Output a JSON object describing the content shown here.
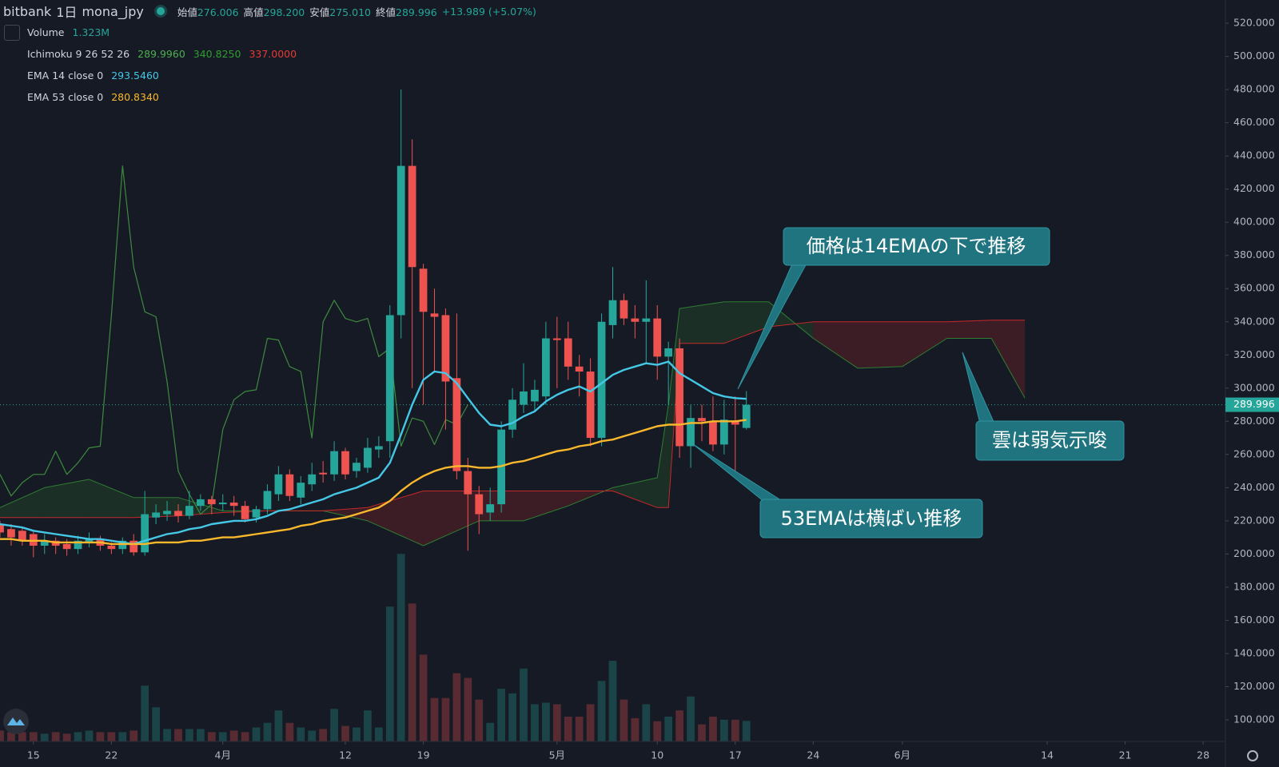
{
  "chart_data": {
    "type": "candlestick",
    "symbol": "bitbank",
    "interval": "1日",
    "pair": "mona_jpy",
    "ohlc_legend": [
      {
        "label": "始値",
        "value": "276.006"
      },
      {
        "label": "高値",
        "value": "298.200"
      },
      {
        "label": "安値",
        "value": "275.010"
      },
      {
        "label": "終値",
        "value": "289.996"
      }
    ],
    "change": "+13.989 (+5.07%)",
    "volume_legend": {
      "name": "Volume",
      "value": "1.323M"
    },
    "ichimoku_legend": {
      "name": "Ichimoku 9 26 52 26",
      "values": [
        "289.9960",
        "340.8250",
        "337.0000"
      ],
      "colors": [
        "#4caf50",
        "#2e9e2e",
        "#e53935"
      ]
    },
    "x": [
      "03-12",
      "03-13",
      "03-14",
      "03-15",
      "03-16",
      "03-17",
      "03-18",
      "03-19",
      "03-20",
      "03-21",
      "03-22",
      "03-23",
      "03-24",
      "03-25",
      "03-26",
      "03-27",
      "03-28",
      "03-29",
      "03-30",
      "03-31",
      "04-01",
      "04-02",
      "04-03",
      "04-04",
      "04-05",
      "04-06",
      "04-07",
      "04-08",
      "04-09",
      "04-10",
      "04-11",
      "04-12",
      "04-13",
      "04-14",
      "04-15",
      "04-16",
      "04-17",
      "04-18",
      "04-19",
      "04-20",
      "04-21",
      "04-22",
      "04-23",
      "04-24",
      "04-25",
      "04-26",
      "04-27",
      "04-28",
      "04-29",
      "04-30",
      "05-01",
      "05-02",
      "05-03",
      "05-04",
      "05-05",
      "05-06",
      "05-07",
      "05-08",
      "05-09",
      "05-10",
      "05-11",
      "05-12",
      "05-13",
      "05-14",
      "05-15",
      "05-16",
      "05-17",
      "05-18"
    ],
    "open": [
      218,
      215,
      214,
      212,
      205,
      208,
      206,
      203,
      207,
      209,
      205,
      203,
      208,
      201,
      222,
      224,
      226,
      223,
      229,
      233,
      230,
      231,
      229,
      222,
      227,
      236,
      248,
      234,
      242,
      249,
      248,
      262,
      250,
      252,
      263,
      268,
      344,
      434,
      372,
      345,
      344,
      306,
      250,
      236,
      225,
      230,
      275,
      290,
      292,
      295,
      330,
      330,
      313,
      310,
      270,
      338,
      353,
      342,
      340,
      342,
      319,
      324,
      265,
      282,
      280,
      266,
      280,
      276.006
    ],
    "high": [
      220,
      218,
      216,
      214,
      212,
      210,
      209,
      211,
      213,
      211,
      207,
      210,
      212,
      238,
      230,
      232,
      230,
      238,
      236,
      235,
      236,
      235,
      232,
      229,
      242,
      253,
      251,
      247,
      255,
      256,
      268,
      264,
      258,
      270,
      271,
      350,
      480,
      450,
      375,
      360,
      348,
      345,
      258,
      241,
      240,
      280,
      300,
      315,
      305,
      340,
      343,
      340,
      320,
      318,
      345,
      373,
      357,
      350,
      365,
      350,
      328,
      330,
      290,
      290,
      295,
      293,
      295,
      298.2
    ],
    "low": [
      210,
      205,
      205,
      198,
      200,
      200,
      199,
      200,
      204,
      202,
      200,
      200,
      199,
      199,
      218,
      220,
      219,
      221,
      226,
      224,
      226,
      223,
      219,
      219,
      224,
      232,
      232,
      230,
      238,
      243,
      244,
      245,
      246,
      249,
      258,
      258,
      330,
      300,
      290,
      310,
      275,
      245,
      202,
      212,
      220,
      225,
      270,
      285,
      286,
      290,
      300,
      305,
      295,
      265,
      265,
      330,
      338,
      330,
      315,
      305,
      290,
      258,
      252,
      268,
      262,
      260,
      250,
      275.01
    ],
    "close": [
      213,
      210,
      208,
      205,
      208,
      205,
      203,
      208,
      209,
      205,
      203,
      208,
      201,
      224,
      225,
      226,
      223,
      229,
      233,
      230,
      231,
      229,
      221,
      227,
      238,
      248,
      235,
      243,
      248,
      248,
      262,
      248,
      255,
      264,
      265,
      344,
      434,
      373,
      346,
      343,
      304,
      250,
      236,
      224,
      230,
      275,
      293,
      298,
      299,
      330,
      329,
      313,
      310,
      270,
      340,
      353,
      342,
      340,
      342,
      319,
      324,
      265,
      282,
      280,
      266,
      281,
      278,
      289.996
    ],
    "volume": [
      0.7,
      0.6,
      0.6,
      0.6,
      0.5,
      0.6,
      0.5,
      0.6,
      0.7,
      0.6,
      0.6,
      0.6,
      0.7,
      3.6,
      2.2,
      0.8,
      0.8,
      0.8,
      0.8,
      0.6,
      0.6,
      0.7,
      0.6,
      0.9,
      1.2,
      2.0,
      1.2,
      0.9,
      0.7,
      0.8,
      2.1,
      1.0,
      0.9,
      2.0,
      0.9,
      8.7,
      12.1,
      8.9,
      5.6,
      2.8,
      2.8,
      4.4,
      4.1,
      2.7,
      1.2,
      3.4,
      3.1,
      4.7,
      2.4,
      2.5,
      2.4,
      1.6,
      1.6,
      2.4,
      3.9,
      5.2,
      2.7,
      1.5,
      2.4,
      1.3,
      1.6,
      2.0,
      2.9,
      1.1,
      1.6,
      1.4,
      1.4,
      1.323
    ],
    "series": [
      {
        "name": "EMA 14 close 0",
        "last_label": "293.5460",
        "color": "#45c7e6",
        "values": [
          218,
          217,
          216,
          214,
          213,
          212,
          211,
          210,
          209,
          209,
          208,
          207,
          206,
          208,
          210,
          212,
          213,
          215,
          216,
          218,
          219,
          220,
          220,
          221,
          223,
          226,
          227,
          229,
          231,
          233,
          236,
          238,
          240,
          243,
          246,
          255,
          272,
          290,
          305,
          310,
          309,
          303,
          294,
          285,
          278,
          277,
          279,
          283,
          286,
          292,
          296,
          299,
          301,
          298,
          303,
          308,
          311,
          313,
          315,
          314,
          316,
          309,
          305,
          301,
          297,
          295,
          294,
          293.546
        ]
      },
      {
        "name": "EMA 53 close 0",
        "last_label": "280.8340",
        "color": "#f9b82c",
        "values": [
          209,
          209,
          208,
          208,
          208,
          207,
          207,
          207,
          207,
          207,
          206,
          206,
          206,
          206,
          207,
          207,
          207,
          208,
          208,
          209,
          210,
          210,
          211,
          212,
          213,
          214,
          215,
          217,
          218,
          220,
          221,
          222,
          224,
          226,
          228,
          232,
          238,
          243,
          247,
          250,
          252,
          253,
          253,
          252,
          252,
          253,
          255,
          256,
          258,
          260,
          262,
          263,
          265,
          266,
          268,
          269,
          271,
          273,
          275,
          277,
          278,
          278,
          279,
          279,
          280,
          280,
          280,
          280.834
        ]
      }
    ],
    "cloud": {
      "x": [
        "03-12",
        "03-16",
        "03-20",
        "03-24",
        "03-28",
        "04-01",
        "04-05",
        "04-10",
        "04-14",
        "04-19",
        "04-24",
        "04-28",
        "05-02",
        "05-06",
        "05-10",
        "05-11",
        "05-12",
        "05-16",
        "05-20",
        "05-24",
        "05-28",
        "06-01",
        "06-05",
        "06-09",
        "06-12"
      ],
      "span_a": [
        228,
        240,
        245,
        234,
        234,
        226,
        226,
        226,
        220,
        205,
        220,
        220,
        229,
        240,
        246,
        290,
        348,
        352,
        352,
        330,
        312,
        313,
        330,
        330,
        294
      ],
      "span_b": [
        222,
        222,
        222,
        222,
        223,
        225,
        226,
        226,
        228,
        238,
        238,
        238,
        238,
        238,
        228,
        228,
        327,
        327,
        337,
        340,
        340,
        340,
        340,
        341,
        341
      ],
      "colors": [
        "#2e7d32",
        "#c62828"
      ]
    },
    "lagging_color": "#3d8b3d",
    "up_color": "#26a69a",
    "down_color": "#ef5350",
    "xlim": [
      "03-12",
      "06-30"
    ],
    "xticks": [
      {
        "value": "03-15",
        "label": "15"
      },
      {
        "value": "03-22",
        "label": "22"
      },
      {
        "value": "04-01",
        "label": "4月"
      },
      {
        "value": "04-12",
        "label": "12"
      },
      {
        "value": "04-19",
        "label": "19"
      },
      {
        "value": "05-01",
        "label": "5月"
      },
      {
        "value": "05-10",
        "label": "10"
      },
      {
        "value": "05-17",
        "label": "17"
      },
      {
        "value": "05-24",
        "label": "24"
      },
      {
        "value": "06-01",
        "label": "6月"
      },
      {
        "value": "06-14",
        "label": "14"
      },
      {
        "value": "06-21",
        "label": "21"
      },
      {
        "value": "06-28",
        "label": "28"
      }
    ],
    "ylim": [
      87,
      534
    ],
    "yticks": [
      {
        "value": 100,
        "label": "100.000"
      },
      {
        "value": 120,
        "label": "120.000"
      },
      {
        "value": 140,
        "label": "140.000"
      },
      {
        "value": 160,
        "label": "160.000"
      },
      {
        "value": 180,
        "label": "180.000"
      },
      {
        "value": 200,
        "label": "200.000"
      },
      {
        "value": 220,
        "label": "220.000"
      },
      {
        "value": 240,
        "label": "240.000"
      },
      {
        "value": 260,
        "label": "260.000"
      },
      {
        "value": 280,
        "label": "280.000"
      },
      {
        "value": 300,
        "label": "300.000"
      },
      {
        "value": 320,
        "label": "320.000"
      },
      {
        "value": 340,
        "label": "340.000"
      },
      {
        "value": 360,
        "label": "360.000"
      },
      {
        "value": 380,
        "label": "380.000"
      },
      {
        "value": 400,
        "label": "400.000"
      },
      {
        "value": 420,
        "label": "420.000"
      },
      {
        "value": 440,
        "label": "440.000"
      },
      {
        "value": 460,
        "label": "460.000"
      },
      {
        "value": 480,
        "label": "480.000"
      },
      {
        "value": 500,
        "label": "500.000"
      },
      {
        "value": 520,
        "label": "520.000"
      }
    ],
    "last_price": {
      "value": 289.996,
      "label": "289.996"
    },
    "grid": false,
    "annotations": [
      "価格は14EMAの下で推移",
      "雲は弱気示唆",
      "53EMAは横ばい推移"
    ]
  }
}
